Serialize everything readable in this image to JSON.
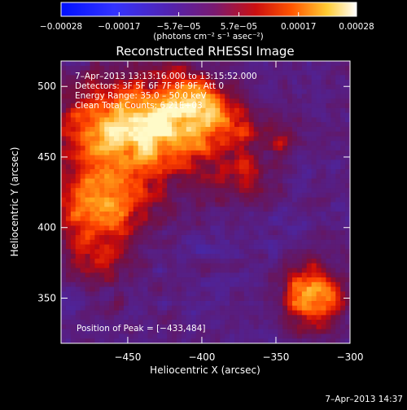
{
  "chart_data": {
    "type": "heatmap",
    "title": "Reconstructed RHESSI Image",
    "xlabel": "Heliocentric X (arcsec)",
    "ylabel": "Heliocentric Y (arcsec)",
    "xlim": [
      -495,
      -300
    ],
    "ylim": [
      318,
      518
    ],
    "xticks": [
      -450,
      -400,
      -350,
      -300
    ],
    "xtick_labels": [
      "−450",
      "−400",
      "−350",
      "−300"
    ],
    "yticks": [
      350,
      400,
      450,
      500
    ],
    "ytick_labels": [
      "350",
      "400",
      "450",
      "500"
    ],
    "colorbar": {
      "min": -0.00028,
      "max": 0.00028,
      "ticks": [
        -0.00028,
        -0.00017,
        -5.7e-05,
        5.7e-05,
        0.00017,
        0.00028
      ],
      "tick_labels": [
        "−0.00028",
        "−0.00017",
        "−5.7e−05",
        "5.7e−05",
        "0.00017",
        "0.00028"
      ],
      "unit_text": "(photons cm⁻² s⁻¹ asec⁻²)"
    },
    "annotations": {
      "time_range": "7–Apr–2013 13:13:16.000 to 13:15:52.000",
      "detectors": "Detectors: 3F 5F 6F 7F 8F 9F, Att 0",
      "energy_range": "Energy Range: 35.0 – 50.0 keV",
      "clean_counts": "Clean     Total Counts: 6.21E+03",
      "peak_position": "Position of Peak = [−433,484]"
    },
    "peak": {
      "x": -433,
      "y": 484
    },
    "sources": [
      {
        "x": -440,
        "y": 470,
        "sx": 38,
        "sy": 25,
        "amp": 1.0
      },
      {
        "x": -468,
        "y": 412,
        "sx": 22,
        "sy": 22,
        "amp": 0.8
      },
      {
        "x": -405,
        "y": 488,
        "sx": 16,
        "sy": 12,
        "amp": 0.55
      },
      {
        "x": -325,
        "y": 350,
        "sx": 14,
        "sy": 16,
        "amp": 0.9
      },
      {
        "x": -372,
        "y": 435,
        "sx": 14,
        "sy": 12,
        "amp": 0.35
      },
      {
        "x": -380,
        "y": 470,
        "sx": 10,
        "sy": 10,
        "amp": 0.25
      },
      {
        "x": -470,
        "y": 372,
        "sx": 12,
        "sy": 10,
        "amp": 0.3
      },
      {
        "x": -345,
        "y": 460,
        "sx": 10,
        "sy": 10,
        "amp": 0.3
      }
    ],
    "grid": false
  },
  "footer": {
    "date_stamp": "7–Apr–2013 14:37"
  },
  "colors": {
    "background": "#000000",
    "frame": "#ffffff",
    "text": "#ffffff",
    "colormap_low": "#1e3cff",
    "colormap_mid": "#7a1fa0",
    "colormap_high": "#ff8c00",
    "colormap_top": "#ffffe0"
  }
}
